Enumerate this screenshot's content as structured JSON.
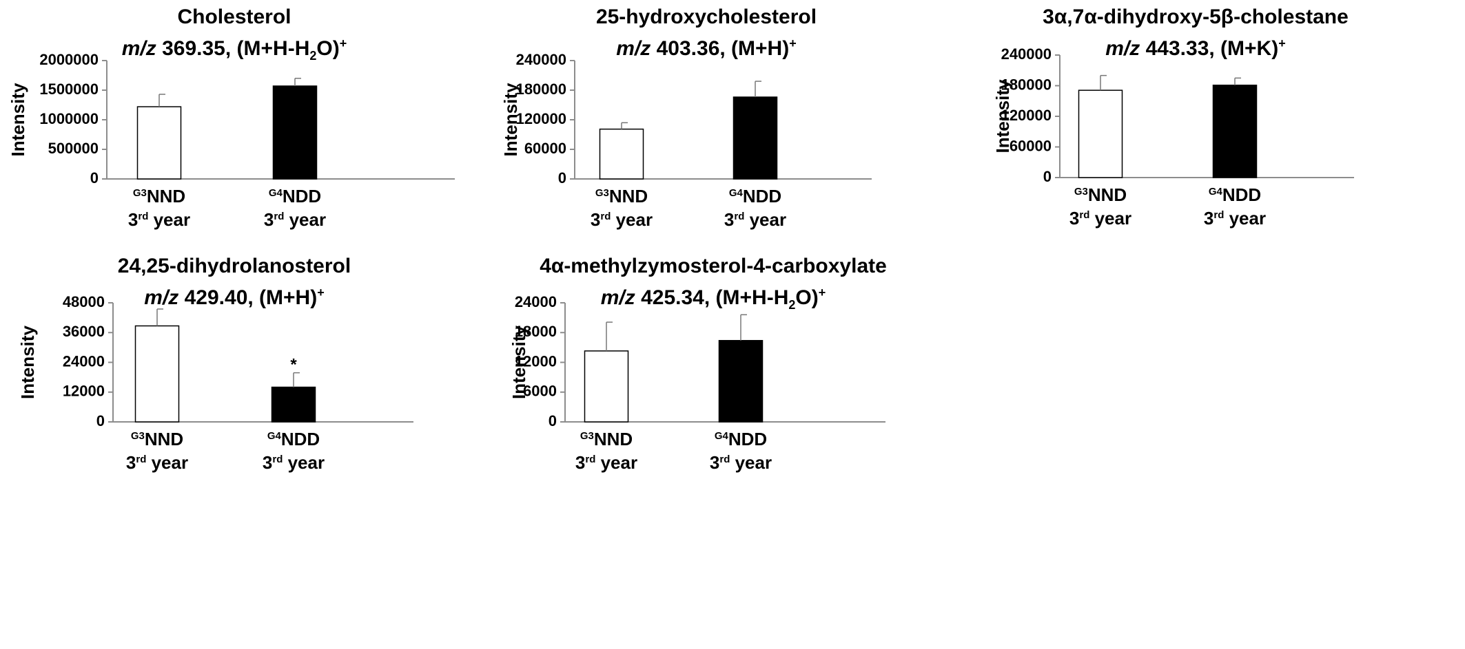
{
  "chart_data": [
    {
      "type": "bar",
      "title_line1": "Cholesterol",
      "mz_label": "m/z",
      "mz_value": "369.35",
      "adduct_pre": ", (M+H-H",
      "adduct_sub": "2",
      "adduct_post": "O)",
      "adduct_sup": "+",
      "ylabel": "Intensity",
      "ylim": [
        0,
        2000000
      ],
      "yticks": [
        0,
        500000,
        1000000,
        1500000,
        2000000
      ],
      "categories": [
        {
          "sup": "G3",
          "name": "NND",
          "year_pre": "3",
          "year_sup": "rd",
          "year_post": " year"
        },
        {
          "sup": "G4",
          "name": "NDD",
          "year_pre": "3",
          "year_sup": "rd",
          "year_post": " year"
        }
      ],
      "values": [
        1220000,
        1570000
      ],
      "errors": [
        210000,
        130000
      ],
      "fills": [
        "#ffffff",
        "#000000"
      ],
      "significance": [
        "",
        ""
      ]
    },
    {
      "type": "bar",
      "title_line1": "25-hydroxycholesterol",
      "mz_label": "m/z",
      "mz_value": "403.36",
      "adduct_pre": ", (M+H)",
      "adduct_sub": "",
      "adduct_post": "",
      "adduct_sup": "+",
      "ylabel": "Intensity",
      "ylim": [
        0,
        240000
      ],
      "yticks": [
        0,
        60000,
        120000,
        180000,
        240000
      ],
      "categories": [
        {
          "sup": "G3",
          "name": "NND",
          "year_pre": "3",
          "year_sup": "rd",
          "year_post": " year"
        },
        {
          "sup": "G4",
          "name": "NDD",
          "year_pre": "3",
          "year_sup": "rd",
          "year_post": " year"
        }
      ],
      "values": [
        101000,
        166000
      ],
      "errors": [
        13000,
        32000
      ],
      "fills": [
        "#ffffff",
        "#000000"
      ],
      "significance": [
        "",
        ""
      ]
    },
    {
      "type": "bar",
      "title_line1": "3α,7α-dihydroxy-5β-cholestane",
      "mz_label": "m/z",
      "mz_value": "443.33",
      "adduct_pre": ", (M+K)",
      "adduct_sub": "",
      "adduct_post": "",
      "adduct_sup": "+",
      "ylabel": "Intensity",
      "ylim": [
        0,
        240000
      ],
      "yticks": [
        0,
        60000,
        120000,
        180000,
        240000
      ],
      "categories": [
        {
          "sup": "G3",
          "name": "NND",
          "year_pre": "3",
          "year_sup": "rd",
          "year_post": " year"
        },
        {
          "sup": "G4",
          "name": "NDD",
          "year_pre": "3",
          "year_sup": "rd",
          "year_post": " year"
        }
      ],
      "values": [
        171000,
        181000
      ],
      "errors": [
        29000,
        14000
      ],
      "fills": [
        "#ffffff",
        "#000000"
      ],
      "significance": [
        "",
        ""
      ]
    },
    {
      "type": "bar",
      "title_line1": "24,25-dihydrolanosterol",
      "mz_label": "m/z",
      "mz_value": "429.40",
      "adduct_pre": ", (M+H)",
      "adduct_sub": "",
      "adduct_post": "",
      "adduct_sup": "+",
      "ylabel": "Intensity",
      "ylim": [
        0,
        48000
      ],
      "yticks": [
        0,
        12000,
        24000,
        36000,
        48000
      ],
      "categories": [
        {
          "sup": "G3",
          "name": "NND",
          "year_pre": "3",
          "year_sup": "rd",
          "year_post": " year"
        },
        {
          "sup": "G4",
          "name": "NDD",
          "year_pre": "3",
          "year_sup": "rd",
          "year_post": " year"
        }
      ],
      "values": [
        38700,
        14000
      ],
      "errors": [
        6800,
        5800
      ],
      "fills": [
        "#ffffff",
        "#000000"
      ],
      "significance": [
        "",
        "*"
      ]
    },
    {
      "type": "bar",
      "title_line1": "4α-methylzymosterol-4-carboxylate",
      "mz_label": "m/z",
      "mz_value": "425.34",
      "adduct_pre": ", (M+H-H",
      "adduct_sub": "2",
      "adduct_post": "O)",
      "adduct_sup": "+",
      "ylabel": "Intensity",
      "ylim": [
        0,
        24000
      ],
      "yticks": [
        0,
        6000,
        12000,
        18000,
        24000
      ],
      "categories": [
        {
          "sup": "G3",
          "name": "NND",
          "year_pre": "3",
          "year_sup": "rd",
          "year_post": " year"
        },
        {
          "sup": "G4",
          "name": "NDD",
          "year_pre": "3",
          "year_sup": "rd",
          "year_post": " year"
        }
      ],
      "values": [
        14300,
        16400
      ],
      "errors": [
        5800,
        5200
      ],
      "fills": [
        "#ffffff",
        "#000000"
      ],
      "significance": [
        "",
        ""
      ]
    }
  ]
}
